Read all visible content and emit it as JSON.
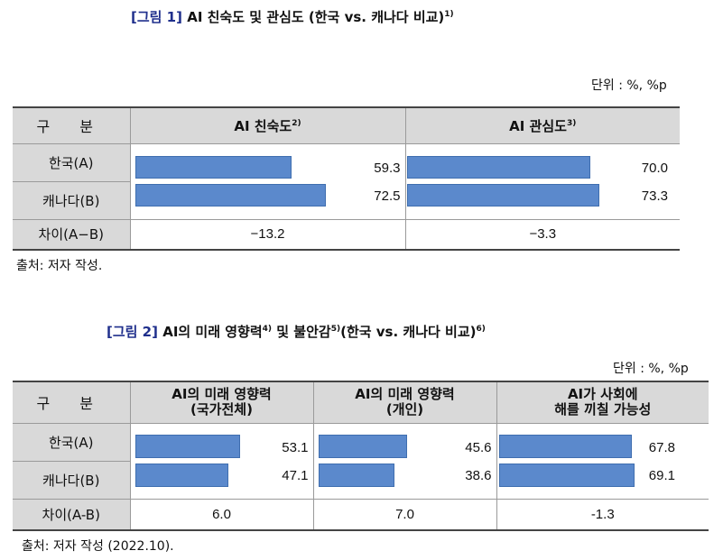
{
  "fig1": {
    "label": "[그림 1]",
    "title": "AI 친숙도 및 관심도 (한국 vs. 캐나다 비교)",
    "title_note": "1)",
    "unit": "단위 : %, %p",
    "header": {
      "category": "구 분",
      "col1": "AI 친숙도",
      "col1_note": "2)",
      "col2": "AI 관심도",
      "col2_note": "3)"
    },
    "rows": [
      {
        "label": "한국(A)",
        "values": [
          "59.3",
          "70.0"
        ]
      },
      {
        "label": "캐나다(B)",
        "values": [
          "72.5",
          "73.3"
        ]
      }
    ],
    "diff": {
      "label": "차이(A−B)",
      "values": [
        "−13.2",
        "−3.3"
      ]
    },
    "source": "출처: 저자 작성."
  },
  "fig2": {
    "label": "[그림 2]",
    "title_a": "AI의 미래 영향력",
    "note_a": "4)",
    "title_b": " 및 불안감",
    "note_b": "5)",
    "title_c": "(한국 vs. 캐나다 비교)",
    "note_c": "6)",
    "unit": "단위 : %, %p",
    "header": {
      "category": "구 분",
      "col1_line1": "AI의 미래 영향력",
      "col1_line2": "(국가전체)",
      "col2_line1": "AI의 미래 영향력",
      "col2_line2": "(개인)",
      "col3_line1": "AI가 사회에",
      "col3_line2": "해를 끼칠 가능성"
    },
    "rows": [
      {
        "label": "한국(A)",
        "values": [
          "53.1",
          "45.6",
          "67.8"
        ]
      },
      {
        "label": "캐나다(B)",
        "values": [
          "47.1",
          "38.6",
          "69.1"
        ]
      }
    ],
    "diff": {
      "label": "차이(A-B)",
      "values": [
        "6.0",
        "7.0",
        "-1.3"
      ]
    },
    "source": "출처: 저자 작성 (2022.10)."
  },
  "colors": {
    "title_label": "#1f2f8c",
    "bar": "#5b89cc",
    "header_bg": "#d9d9d9"
  }
}
